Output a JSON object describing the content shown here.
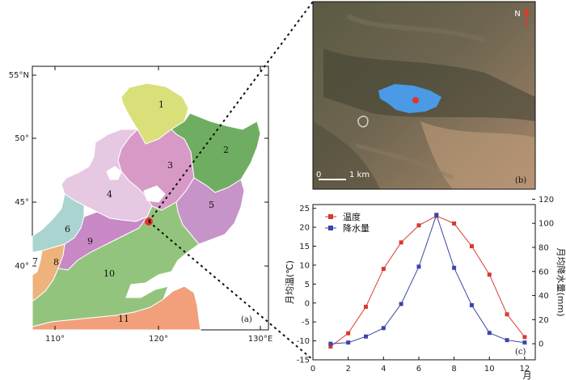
{
  "map": {
    "lat_labels": [
      "55°N",
      "50°",
      "45°",
      "40°"
    ],
    "lon_labels": [
      "110°",
      "120°",
      "130°E"
    ],
    "regions": [
      "1",
      "2",
      "3",
      "4",
      "5",
      "6",
      "7",
      "8",
      "9",
      "10",
      "11"
    ],
    "panel_label": "(a)",
    "colors": {
      "r1": "#d9e07a",
      "r2": "#6fae62",
      "r3": "#d79ac6",
      "r4": "#e6c8e2",
      "r5": "#c694c8",
      "r6": "#a9d4cf",
      "r7": "#ffffff",
      "r8": "#eeb37c",
      "r9": "#c889c6",
      "r10": "#93c47d",
      "r11": "#f2a07b",
      "lake": "#ffffff",
      "site": "#e8322b"
    }
  },
  "satellite": {
    "north_label": "N",
    "scale_zero": "0",
    "scale_km": "1 km",
    "panel_label": "(b)",
    "colors": {
      "lake": "#4a9ae6",
      "site": "#e8322b"
    }
  },
  "chart_data": {
    "type": "line",
    "panel_label": "(c)",
    "x": [
      1,
      2,
      3,
      4,
      5,
      6,
      7,
      8,
      9,
      10,
      11,
      12
    ],
    "xlim": [
      0,
      12.6
    ],
    "x_ticks": [
      "0",
      "2",
      "4",
      "6",
      "8",
      "10",
      "12"
    ],
    "x_unit": "月",
    "ylabel_left": "月均温(℃)",
    "ylabel_right": "月均降水量(mm)",
    "ylim_left": [
      -15,
      26
    ],
    "ylim_right": [
      -13.33,
      115.56
    ],
    "left_ticks": [
      "-15",
      "-10",
      "-5",
      "0",
      "5",
      "10",
      "15",
      "20",
      "25"
    ],
    "right_ticks": [
      "0",
      "20",
      "40",
      "60",
      "80",
      "100",
      "120"
    ],
    "legend_position": "top-left",
    "series": [
      {
        "name": "温度",
        "axis": "left",
        "color": "#d9382f",
        "values": [
          -11.5,
          -8.0,
          -1.0,
          9.0,
          16.0,
          20.5,
          23.0,
          21.0,
          15.0,
          7.5,
          -3.0,
          -9.0
        ]
      },
      {
        "name": "降水量",
        "axis": "right",
        "color": "#3b46a8",
        "values": [
          0.0,
          1.0,
          6.0,
          13.0,
          33.0,
          64.0,
          107.0,
          63.0,
          32.0,
          9.0,
          3.0,
          1.0
        ]
      }
    ]
  }
}
